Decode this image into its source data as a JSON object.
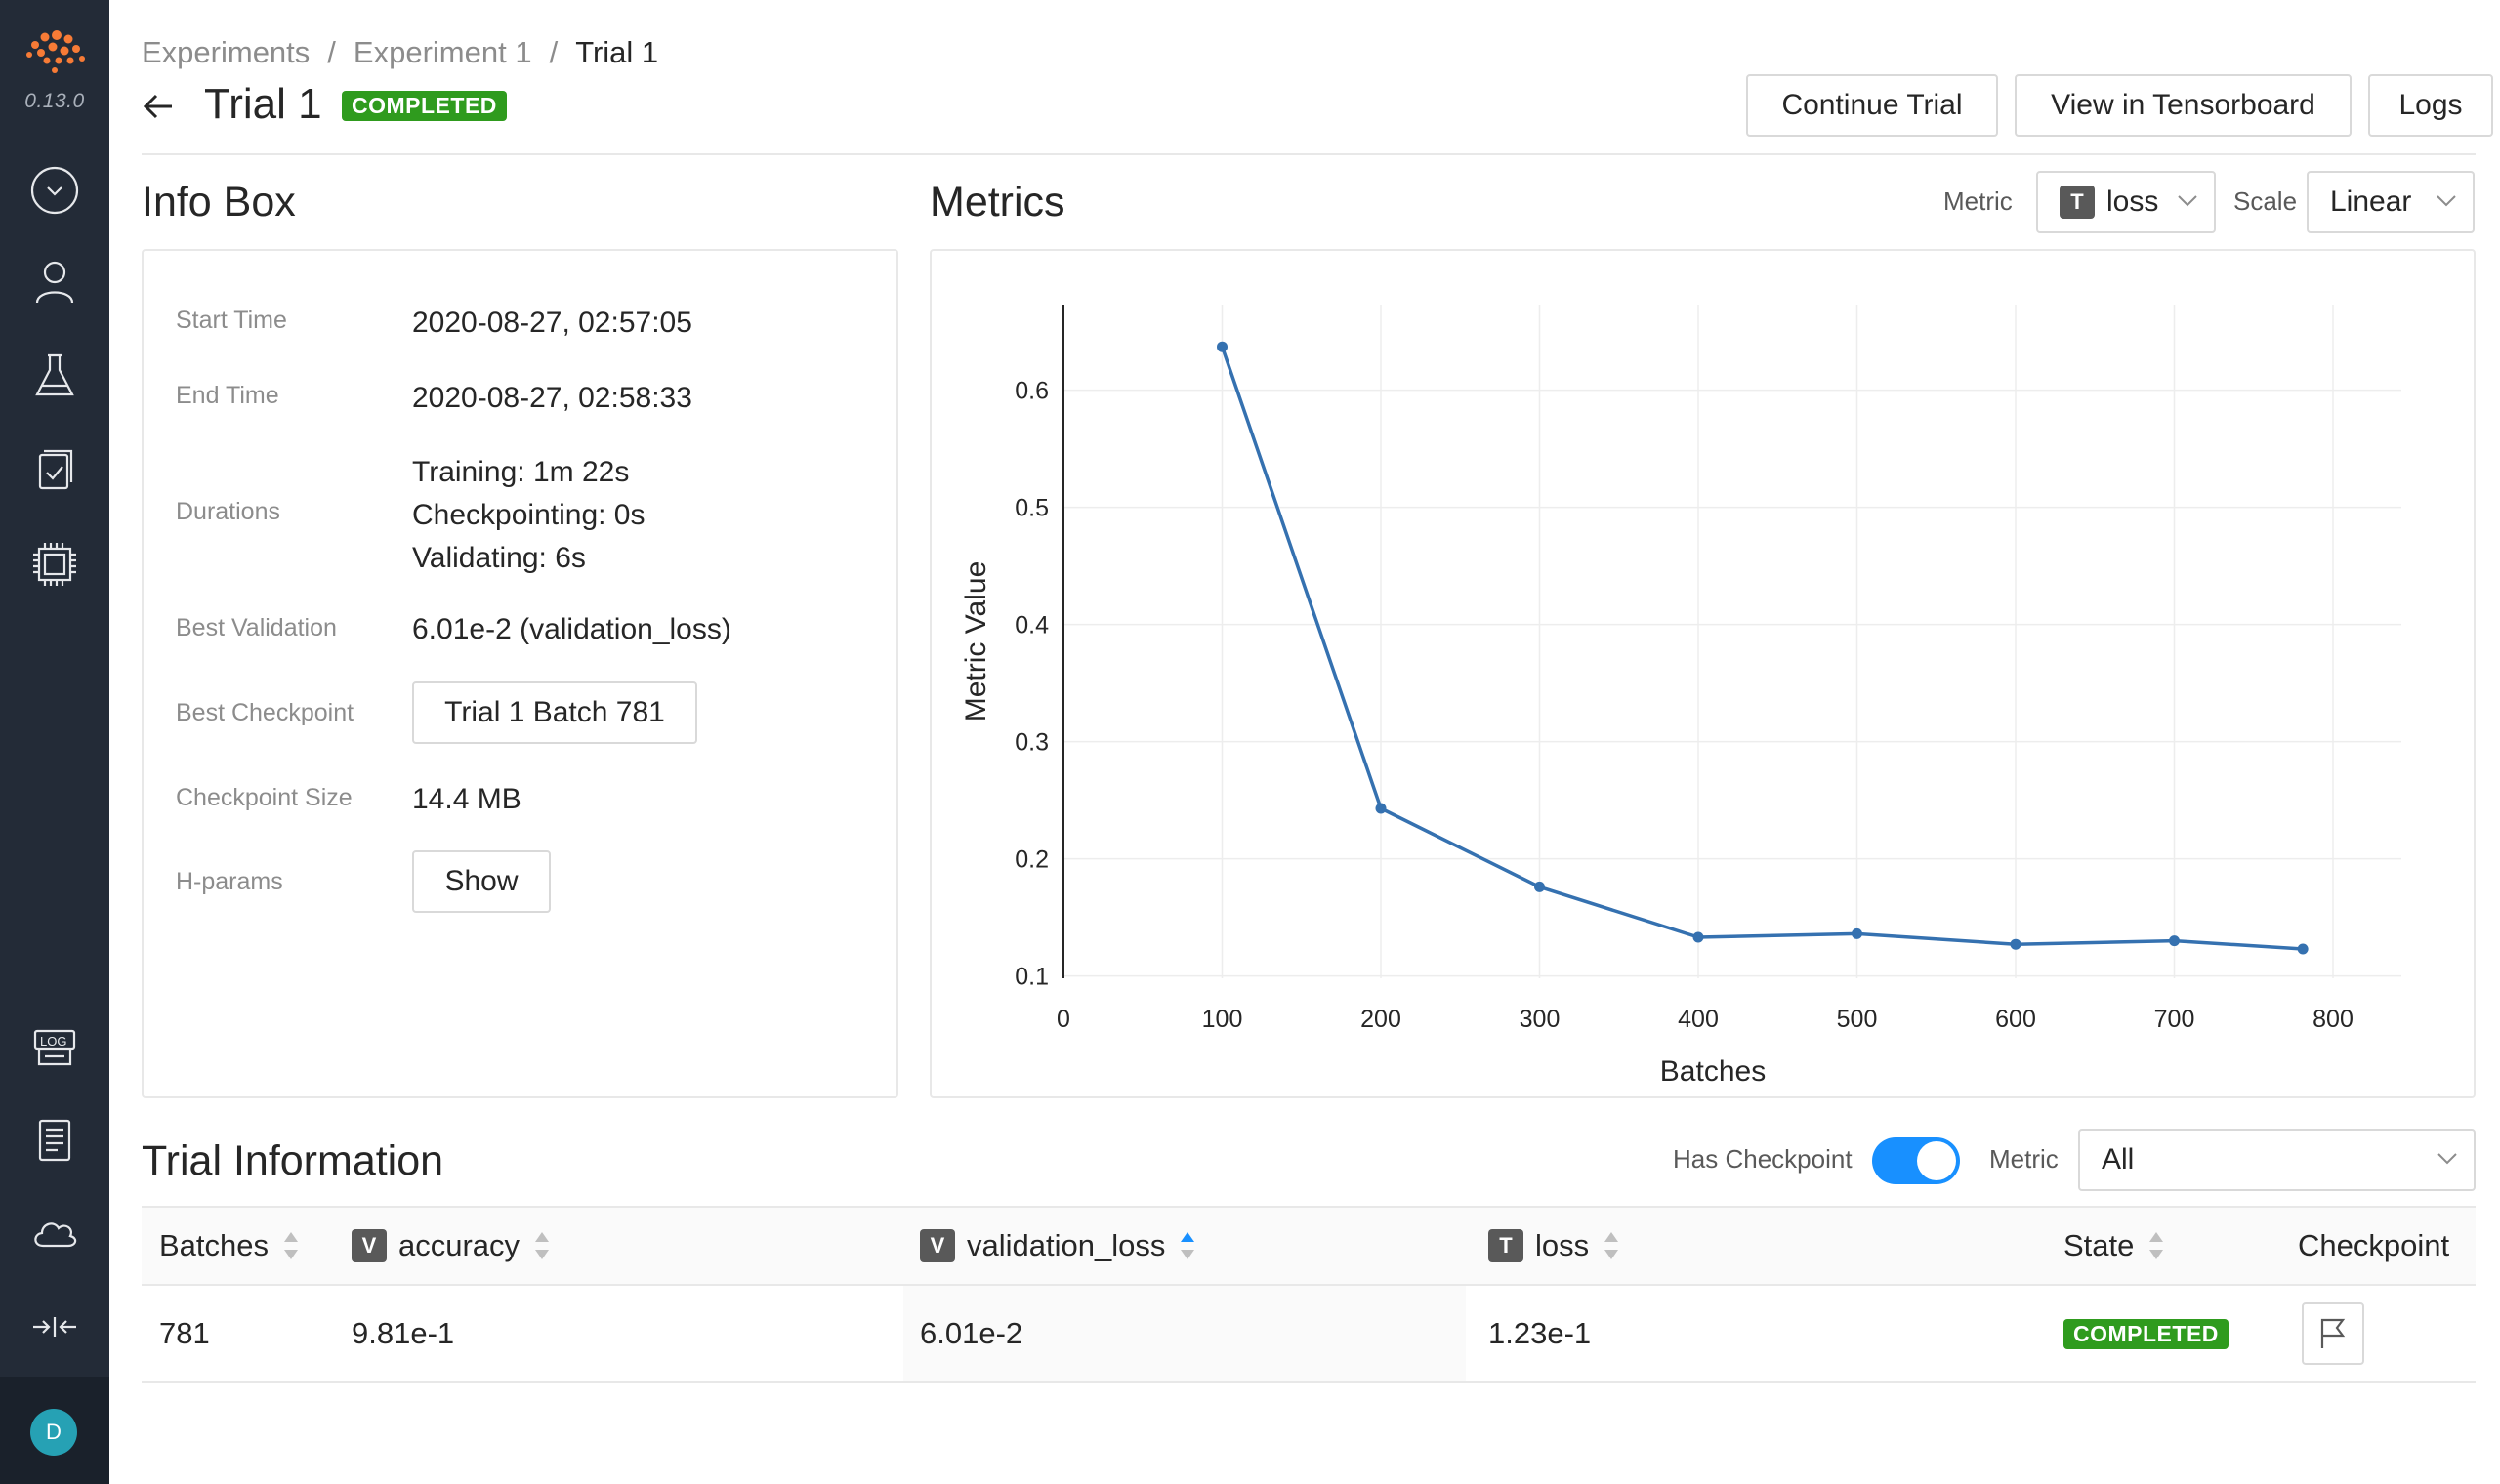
{
  "app": {
    "version": "0.13.0",
    "user_initial": "D"
  },
  "sidebar": {
    "items": [
      {
        "icon": "dropdown-circle-icon"
      },
      {
        "icon": "user-icon"
      },
      {
        "icon": "flask-icon"
      },
      {
        "icon": "tasks-icon"
      },
      {
        "icon": "cluster-chip-icon"
      },
      {
        "icon": "log-icon"
      },
      {
        "icon": "document-icon"
      },
      {
        "icon": "cloud-icon"
      },
      {
        "icon": "collapse-icon"
      }
    ]
  },
  "breadcrumb": {
    "items": [
      "Experiments",
      "Experiment 1",
      "Trial 1"
    ],
    "separator": "/"
  },
  "header": {
    "title": "Trial 1",
    "status": "COMPLETED",
    "buttons": {
      "continue": "Continue Trial",
      "tensorboard": "View in Tensorboard",
      "logs": "Logs"
    }
  },
  "info_box": {
    "title": "Info Box",
    "start_time_label": "Start Time",
    "start_time": "2020-08-27, 02:57:05",
    "end_time_label": "End Time",
    "end_time": "2020-08-27, 02:58:33",
    "durations_label": "Durations",
    "durations": {
      "training": "Training: 1m 22s",
      "checkpointing": "Checkpointing: 0s",
      "validating": "Validating: 6s"
    },
    "best_validation_label": "Best Validation",
    "best_validation": "6.01e-2 (validation_loss)",
    "best_checkpoint_label": "Best Checkpoint",
    "best_checkpoint": "Trial 1 Batch 781",
    "checkpoint_size_label": "Checkpoint Size",
    "checkpoint_size": "14.4 MB",
    "hparams_label": "H-params",
    "hparams_button": "Show"
  },
  "metrics": {
    "title": "Metrics",
    "metric_label": "Metric",
    "metric_tag": "T",
    "metric_value": "loss",
    "scale_label": "Scale",
    "scale_value": "Linear"
  },
  "chart_data": {
    "type": "line",
    "xlabel": "Batches",
    "ylabel": "Metric Value",
    "xlim": [
      0,
      800
    ],
    "ylim": [
      0.1,
      0.6
    ],
    "x_ticks": [
      0,
      100,
      200,
      300,
      400,
      500,
      600,
      700,
      800
    ],
    "y_ticks": [
      0.1,
      0.2,
      0.3,
      0.4,
      0.5,
      0.6
    ],
    "grid": true,
    "color": "#3571b0",
    "series": [
      {
        "x": [
          100,
          200,
          300,
          400,
          500,
          600,
          700,
          781
        ],
        "y": [
          0.637,
          0.243,
          0.176,
          0.133,
          0.136,
          0.127,
          0.13,
          0.123
        ]
      }
    ]
  },
  "trial_info": {
    "title": "Trial Information",
    "has_checkpoint_label": "Has Checkpoint",
    "has_checkpoint": true,
    "metric_label": "Metric",
    "metric_value": "All",
    "columns": [
      {
        "label": "Batches",
        "tag": ""
      },
      {
        "label": "accuracy",
        "tag": "V"
      },
      {
        "label": "validation_loss",
        "tag": "V"
      },
      {
        "label": "loss",
        "tag": "T"
      },
      {
        "label": "State",
        "tag": ""
      },
      {
        "label": "Checkpoint",
        "tag": ""
      }
    ],
    "rows": [
      {
        "batches": "781",
        "accuracy": "9.81e-1",
        "validation_loss": "6.01e-2",
        "loss": "1.23e-1",
        "state": "COMPLETED"
      }
    ]
  },
  "colors": {
    "sidebar": "#232b37",
    "accent": "#1890ff",
    "success": "#2f9b1e",
    "logo": "#f77b36"
  }
}
